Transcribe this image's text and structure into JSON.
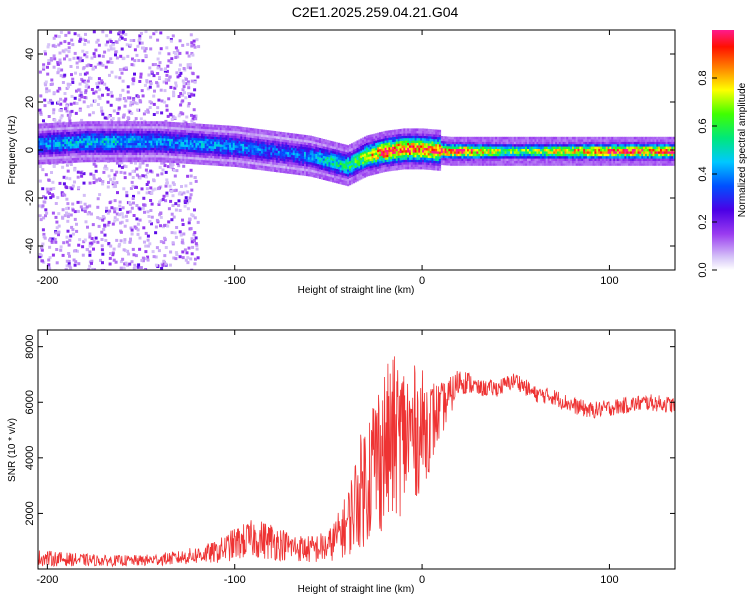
{
  "title": "C2E1.2025.259.04.21.G04",
  "colors": {
    "snr_line": "#ee3333",
    "frame": "#000000"
  },
  "chart_data": [
    {
      "type": "heatmap",
      "xlabel": "Height of straight line (km)",
      "ylabel": "Frequency (Hz)",
      "xlim": [
        -205,
        135
      ],
      "ylim": [
        -50,
        50
      ],
      "xticks": [
        -200,
        -100,
        0,
        100
      ],
      "yticks": [
        -40,
        -20,
        0,
        20,
        40
      ],
      "colorbar": {
        "label": "Normalized spectral amplitude",
        "range": [
          0.0,
          1.0
        ],
        "ticks": [
          0.0,
          0.2,
          0.4,
          0.6,
          0.8
        ],
        "tick_labels": [
          "0.0",
          "0.2",
          "0.4",
          "0.6",
          "0.8"
        ],
        "colormap": "rainbow (violet-blue-cyan-green-yellow-red-magenta)"
      },
      "ridge": {
        "x": [
          -205,
          -180,
          -160,
          -140,
          -120,
          -100,
          -80,
          -60,
          -50,
          -40,
          -30,
          -20,
          -10,
          0,
          15,
          50,
          90,
          110,
          135
        ],
        "center_hz": [
          3,
          4,
          4,
          4,
          3,
          2,
          0,
          -2,
          -4,
          -6,
          -2,
          0,
          1,
          1,
          0,
          0,
          0,
          0,
          0
        ],
        "peak_amplitude": [
          0.4,
          0.45,
          0.45,
          0.4,
          0.4,
          0.4,
          0.35,
          0.4,
          0.5,
          0.55,
          0.7,
          0.9,
          0.9,
          0.9,
          0.95,
          0.6,
          0.85,
          0.9,
          0.9
        ]
      },
      "scatter_region": {
        "x_range": [
          -205,
          -120
        ],
        "freq_range": [
          -50,
          50
        ]
      }
    },
    {
      "type": "line",
      "xlabel": "Height of straight line (km)",
      "ylabel": "SNR (10 * v/v)",
      "xlim": [
        -205,
        135
      ],
      "ylim": [
        0,
        8600
      ],
      "xticks": [
        -200,
        -100,
        0,
        100
      ],
      "yticks": [
        2000,
        4000,
        6000,
        8000
      ],
      "series": [
        {
          "x": [
            -205,
            -190,
            -170,
            -150,
            -130,
            -110,
            -100,
            -90,
            -80,
            -70,
            -60,
            -50,
            -45,
            -40,
            -35,
            -30,
            -25,
            -20,
            -15,
            -10,
            -5,
            0,
            5,
            10,
            15,
            20,
            25,
            30,
            40,
            50,
            60,
            70,
            80,
            90,
            100,
            110,
            120,
            135
          ],
          "y": [
            400,
            350,
            300,
            300,
            400,
            600,
            900,
            1100,
            1000,
            800,
            700,
            800,
            1200,
            1600,
            2500,
            3200,
            4000,
            4300,
            4700,
            4800,
            4900,
            5000,
            5300,
            5700,
            6200,
            6800,
            6700,
            6500,
            6500,
            6800,
            6300,
            6200,
            5900,
            5700,
            5800,
            5900,
            6000,
            5900
          ],
          "noise": [
            300,
            250,
            200,
            200,
            250,
            400,
            600,
            700,
            700,
            500,
            500,
            600,
            800,
            1200,
            1800,
            2400,
            2800,
            3000,
            3000,
            2800,
            2500,
            2200,
            1600,
            1000,
            700,
            500,
            400,
            300,
            300,
            300,
            300,
            300,
            300,
            300,
            300,
            300,
            300,
            300
          ]
        }
      ]
    }
  ]
}
